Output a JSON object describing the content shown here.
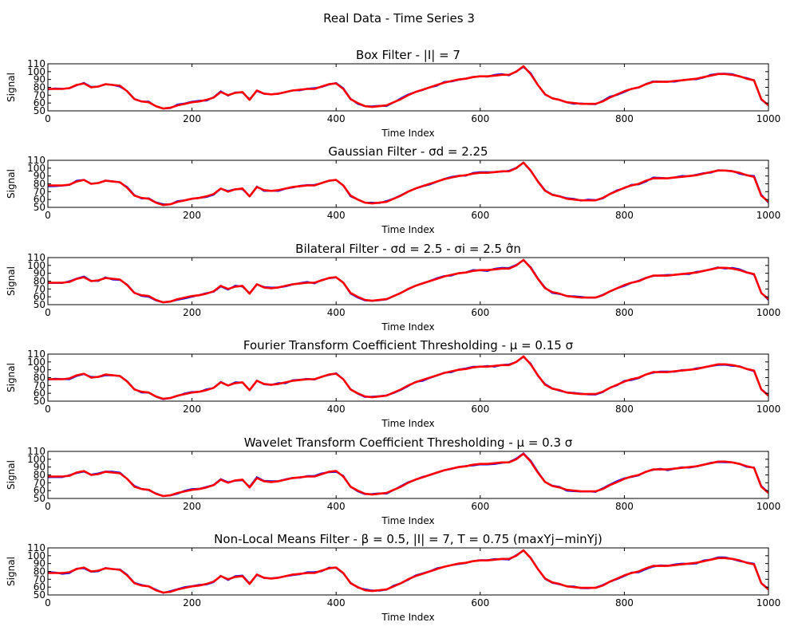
{
  "figure": {
    "title": "Real Data - Time Series 3"
  },
  "colors": {
    "noisy": "#0000ff",
    "filtered": "#ff0000"
  },
  "chart_data": [
    {
      "type": "line",
      "title": "Box Filter - |I| = 7",
      "xlabel": "Time Index",
      "ylabel": "Signal",
      "xlim": [
        0,
        1000
      ],
      "ylim": [
        50,
        110
      ],
      "xticks": [
        0,
        200,
        400,
        600,
        800,
        1000
      ],
      "yticks": [
        50,
        60,
        70,
        80,
        90,
        100,
        110
      ]
    },
    {
      "type": "line",
      "title": "Gaussian Filter - σd = 2.25",
      "xlabel": "Time Index",
      "ylabel": "Signal",
      "xlim": [
        0,
        1000
      ],
      "ylim": [
        50,
        110
      ],
      "xticks": [
        0,
        200,
        400,
        600,
        800,
        1000
      ],
      "yticks": [
        50,
        60,
        70,
        80,
        90,
        100,
        110
      ]
    },
    {
      "type": "line",
      "title": "Bilateral Filter - σd = 2.5 - σi = 2.5 σ̂n",
      "xlabel": "Time Index",
      "ylabel": "Signal",
      "xlim": [
        0,
        1000
      ],
      "ylim": [
        50,
        110
      ],
      "xticks": [
        0,
        200,
        400,
        600,
        800,
        1000
      ],
      "yticks": [
        50,
        60,
        70,
        80,
        90,
        100,
        110
      ]
    },
    {
      "type": "line",
      "title": "Fourier Transform Coefficient Thresholding - μ = 0.15 σ",
      "xlabel": "Time Index",
      "ylabel": "Signal",
      "xlim": [
        0,
        1000
      ],
      "ylim": [
        50,
        110
      ],
      "xticks": [
        0,
        200,
        400,
        600,
        800,
        1000
      ],
      "yticks": [
        50,
        60,
        70,
        80,
        90,
        100,
        110
      ]
    },
    {
      "type": "line",
      "title": "Wavelet Transform Coefficient Thresholding - μ = 0.3 σ",
      "xlabel": "Time Index",
      "ylabel": "Signal",
      "xlim": [
        0,
        1000
      ],
      "ylim": [
        50,
        110
      ],
      "xticks": [
        0,
        200,
        400,
        600,
        800,
        1000
      ],
      "yticks": [
        50,
        60,
        70,
        80,
        90,
        100,
        110
      ]
    },
    {
      "type": "line",
      "title": "Non-Local Means Filter - β = 0.5, |I| = 7, T = 0.75 (maxYj−minYj)",
      "xlabel": "Time Index",
      "ylabel": "Signal",
      "xlim": [
        0,
        1000
      ],
      "ylim": [
        50,
        110
      ],
      "xticks": [
        0,
        200,
        400,
        600,
        800,
        1000
      ],
      "yticks": [
        50,
        60,
        70,
        80,
        90,
        100,
        110
      ]
    }
  ],
  "series_template": {
    "x": [
      0,
      10,
      20,
      30,
      40,
      50,
      60,
      70,
      80,
      90,
      100,
      110,
      120,
      130,
      140,
      150,
      160,
      170,
      180,
      190,
      200,
      210,
      220,
      230,
      240,
      250,
      260,
      270,
      280,
      290,
      300,
      310,
      320,
      330,
      340,
      350,
      360,
      370,
      380,
      390,
      400,
      410,
      420,
      430,
      440,
      450,
      460,
      470,
      480,
      490,
      500,
      510,
      520,
      530,
      540,
      550,
      560,
      570,
      580,
      590,
      600,
      610,
      620,
      630,
      640,
      650,
      660,
      670,
      680,
      690,
      700,
      710,
      720,
      730,
      740,
      750,
      760,
      770,
      780,
      790,
      800,
      810,
      820,
      830,
      840,
      850,
      860,
      870,
      880,
      890,
      900,
      910,
      920,
      930,
      940,
      950,
      960,
      970,
      980,
      990,
      1000
    ],
    "y": [
      78,
      78,
      78,
      79,
      83,
      85,
      80,
      81,
      84,
      83,
      82,
      75,
      65,
      62,
      61,
      56,
      53,
      54,
      57,
      59,
      61,
      62,
      64,
      67,
      74,
      70,
      73,
      74,
      64,
      76,
      72,
      71,
      72,
      74,
      76,
      77,
      78,
      78,
      81,
      84,
      85,
      78,
      65,
      60,
      56,
      55,
      56,
      57,
      61,
      65,
      70,
      74,
      77,
      80,
      83,
      86,
      88,
      90,
      91,
      93,
      94,
      94,
      95,
      96,
      96,
      100,
      107,
      97,
      83,
      71,
      66,
      64,
      61,
      60,
      59,
      59,
      59,
      62,
      67,
      71,
      75,
      78,
      80,
      84,
      87,
      87,
      87,
      88,
      89,
      90,
      91,
      93,
      95,
      97,
      97,
      96,
      94,
      91,
      89,
      65,
      57
    ]
  }
}
